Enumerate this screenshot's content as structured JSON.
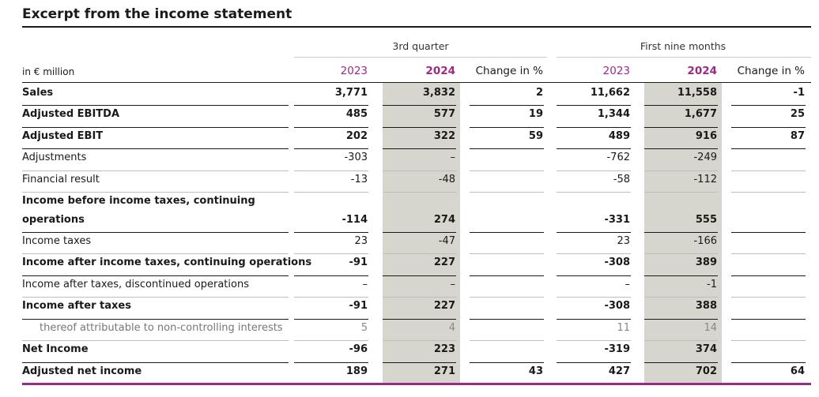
{
  "title": "Excerpt from the income statement",
  "groups": {
    "q3": "3rd quarter",
    "nine": "First nine months"
  },
  "headers": {
    "unit": "in € million",
    "q3_2023": "2023",
    "q3_2024": "2024",
    "q3_change": "Change in %",
    "n_2023": "2023",
    "n_2024": "2024",
    "n_change": "Change in %"
  },
  "colors": {
    "accent": "#9b2a86",
    "highlight_column": "#d7d6ce"
  },
  "rows": [
    {
      "label": "Sales",
      "bold": true,
      "values": [
        "3,771",
        "3,832",
        "2",
        "11,662",
        "11,558",
        "-1"
      ]
    },
    {
      "label": "Adjusted EBITDA",
      "bold": true,
      "values": [
        "485",
        "577",
        "19",
        "1,344",
        "1,677",
        "25"
      ]
    },
    {
      "label": "Adjusted EBIT",
      "bold": true,
      "values": [
        "202",
        "322",
        "59",
        "489",
        "916",
        "87"
      ]
    },
    {
      "label": "Adjustments",
      "bold": false,
      "values": [
        "-303",
        "–",
        "",
        "-762",
        "-249",
        ""
      ]
    },
    {
      "label": "Financial result",
      "bold": false,
      "values": [
        "-13",
        "-48",
        "",
        "-58",
        "-112",
        ""
      ]
    },
    {
      "label": "Income before income taxes, continuing",
      "label2": "operations",
      "bold": true,
      "values": [
        "-114",
        "274",
        "",
        "-331",
        "555",
        ""
      ]
    },
    {
      "label": "Income taxes",
      "bold": false,
      "values": [
        "23",
        "-47",
        "",
        "23",
        "-166",
        ""
      ]
    },
    {
      "label": "Income after income taxes, continuing operations",
      "bold": true,
      "values": [
        "-91",
        "227",
        "",
        "-308",
        "389",
        ""
      ]
    },
    {
      "label": "Income after taxes, discontinued operations",
      "bold": false,
      "values": [
        "–",
        "–",
        "",
        "–",
        "-1",
        ""
      ]
    },
    {
      "label": "Income after taxes",
      "bold": true,
      "values": [
        "-91",
        "227",
        "",
        "-308",
        "388",
        ""
      ]
    },
    {
      "label": "thereof attributable to non-controlling interests",
      "bold": false,
      "indent": true,
      "values": [
        "5",
        "4",
        "",
        "11",
        "14",
        ""
      ]
    },
    {
      "label": "Net Income",
      "bold": true,
      "values": [
        "-96",
        "223",
        "",
        "-319",
        "374",
        ""
      ]
    },
    {
      "label": "Adjusted net income",
      "bold": true,
      "values": [
        "189",
        "271",
        "43",
        "427",
        "702",
        "64"
      ]
    }
  ]
}
